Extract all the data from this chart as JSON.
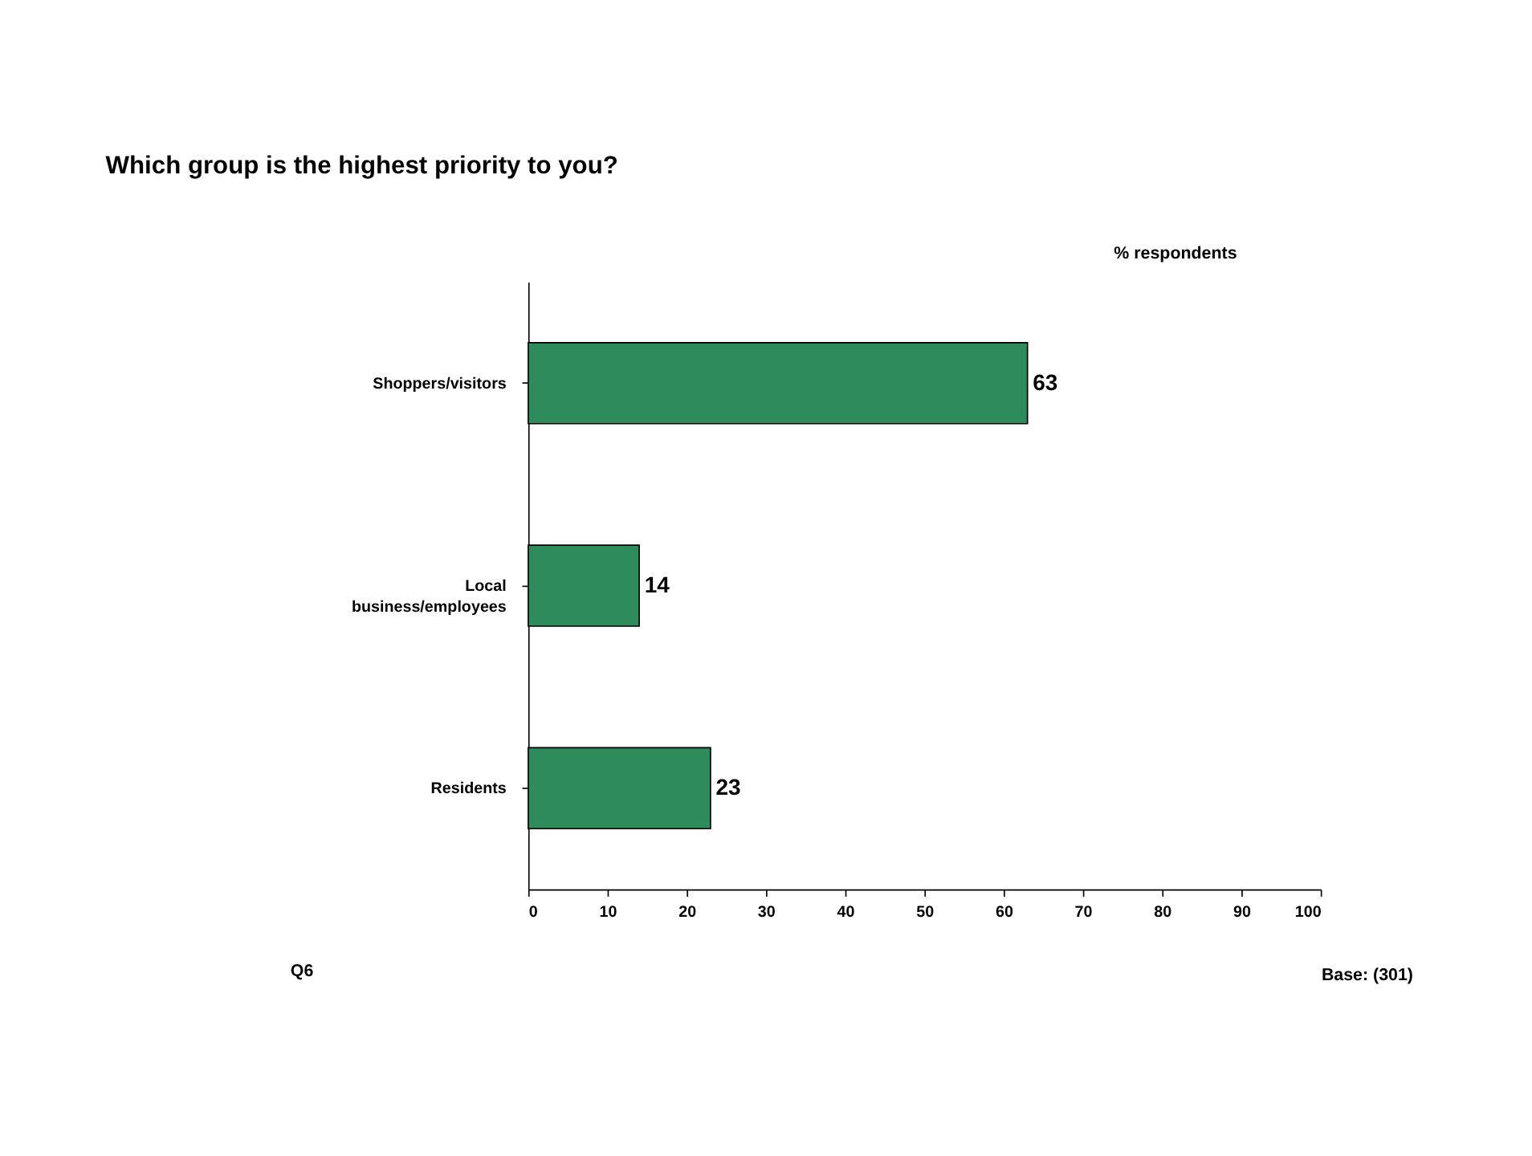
{
  "chart_data": {
    "type": "bar",
    "orientation": "horizontal",
    "title": "Which group is the highest priority to you?",
    "categories": [
      "Shoppers/visitors",
      "Local business/employees",
      "Residents"
    ],
    "values": [
      63,
      14,
      23
    ],
    "color": "#2e8b5c",
    "xlim": [
      0,
      100
    ],
    "xticks": [
      0,
      10,
      20,
      30,
      40,
      50,
      60,
      70,
      80,
      90,
      100
    ],
    "data_labels": true,
    "grid": false,
    "annotations": [
      "% respondents",
      "Q6",
      "Base: (301)"
    ]
  }
}
